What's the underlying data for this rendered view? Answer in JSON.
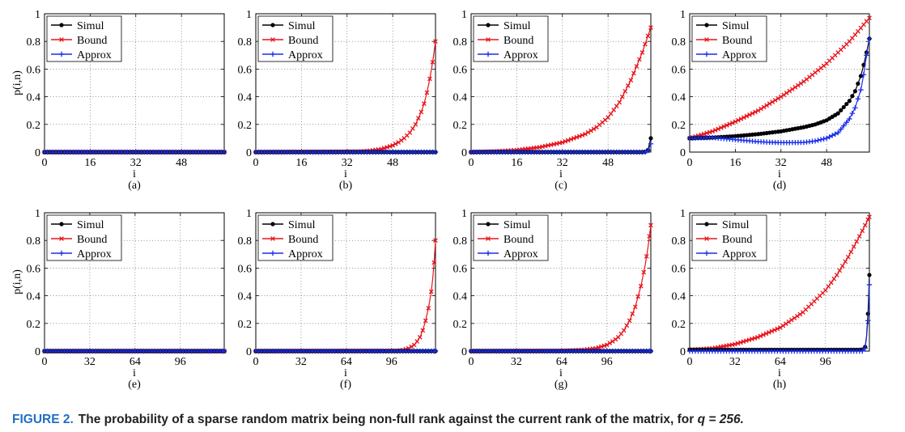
{
  "caption": {
    "lead": "FIGURE 2.",
    "body": "The probability of a sparse random matrix being non-full rank against the current rank of the matrix, for",
    "q_label": "q = 256."
  },
  "colors": {
    "simul": "#000000",
    "bound": "#e8141b",
    "approx": "#1a2fe8"
  },
  "chart_data": [
    {
      "type": "line",
      "panel_label": "(a)",
      "xlabel": "i",
      "ylabel": "p(i,n)",
      "xlim": [
        0,
        63
      ],
      "ylim": [
        0,
        1
      ],
      "xticks": [
        0,
        16,
        32,
        48
      ],
      "yticks": [
        0,
        0.2,
        0.4,
        0.6,
        0.8,
        1
      ],
      "ytick_labels": [
        "0",
        "0.2",
        "0.4",
        "0.6",
        "0.8",
        "1"
      ],
      "grid": true,
      "legend": "top-left",
      "legend_entries": [
        "Simul",
        "Bound",
        "Approx"
      ],
      "series": [
        {
          "name": "Simul",
          "x": [
            0,
            63
          ],
          "y": [
            0,
            0
          ]
        },
        {
          "name": "Bound",
          "x": [
            0,
            63
          ],
          "y": [
            0,
            0
          ]
        },
        {
          "name": "Approx",
          "x": [
            0,
            63
          ],
          "y": [
            0,
            0
          ]
        }
      ]
    },
    {
      "type": "line",
      "panel_label": "(b)",
      "xlabel": "i",
      "ylabel": "",
      "xlim": [
        0,
        63
      ],
      "ylim": [
        0,
        1
      ],
      "xticks": [
        0,
        16,
        32,
        48
      ],
      "yticks": [
        0,
        0.2,
        0.4,
        0.6,
        0.8,
        1
      ],
      "ytick_labels": [
        "0",
        "0.2",
        "0.4",
        "0.6",
        "0.8",
        "1"
      ],
      "grid": true,
      "legend": "top-left",
      "legend_entries": [
        "Simul",
        "Bound",
        "Approx"
      ],
      "series": [
        {
          "name": "Simul",
          "x": [
            0,
            63
          ],
          "y": [
            0,
            0
          ]
        },
        {
          "name": "Bound",
          "x": [
            0,
            36,
            40,
            44,
            48,
            50,
            52,
            54,
            56,
            58,
            59,
            60,
            61,
            62,
            63
          ],
          "y": [
            0,
            0.004,
            0.01,
            0.022,
            0.048,
            0.07,
            0.1,
            0.14,
            0.2,
            0.29,
            0.35,
            0.43,
            0.53,
            0.65,
            0.8
          ]
        },
        {
          "name": "Approx",
          "x": [
            0,
            63
          ],
          "y": [
            0,
            0
          ]
        }
      ]
    },
    {
      "type": "line",
      "panel_label": "(c)",
      "xlabel": "i",
      "ylabel": "",
      "xlim": [
        0,
        63
      ],
      "ylim": [
        0,
        1
      ],
      "xticks": [
        0,
        16,
        32,
        48
      ],
      "yticks": [
        0,
        0.2,
        0.4,
        0.6,
        0.8,
        1
      ],
      "ytick_labels": [
        "0",
        "0.2",
        "0.4",
        "0.6",
        "0.8",
        "1"
      ],
      "grid": true,
      "legend": "top-left",
      "legend_entries": [
        "Simul",
        "Bound",
        "Approx"
      ],
      "series": [
        {
          "name": "Simul",
          "x": [
            0,
            60,
            61,
            62,
            63
          ],
          "y": [
            0,
            0,
            0.003,
            0.015,
            0.1
          ]
        },
        {
          "name": "Bound",
          "x": [
            0,
            8,
            16,
            24,
            32,
            40,
            44,
            48,
            52,
            56,
            58,
            60,
            62,
            63
          ],
          "y": [
            0,
            0.005,
            0.015,
            0.035,
            0.07,
            0.13,
            0.18,
            0.25,
            0.36,
            0.52,
            0.62,
            0.72,
            0.84,
            0.9
          ]
        },
        {
          "name": "Approx",
          "x": [
            0,
            61,
            62,
            63
          ],
          "y": [
            0,
            0,
            0.01,
            0.06
          ]
        }
      ]
    },
    {
      "type": "line",
      "panel_label": "(d)",
      "xlabel": "i",
      "ylabel": "",
      "xlim": [
        0,
        63
      ],
      "ylim": [
        0,
        1
      ],
      "xticks": [
        0,
        16,
        32,
        48
      ],
      "yticks": [
        0,
        0.2,
        0.4,
        0.6,
        0.8,
        1
      ],
      "ytick_labels": [
        "0",
        "0.2",
        "0.4",
        "0.6",
        "0.8",
        "1"
      ],
      "grid": true,
      "legend": "top-left",
      "legend_entries": [
        "Simul",
        "Bound",
        "Approx"
      ],
      "series": [
        {
          "name": "Simul",
          "x": [
            0,
            8,
            16,
            24,
            32,
            40,
            44,
            48,
            52,
            56,
            58,
            60,
            61,
            62,
            63
          ],
          "y": [
            0.1,
            0.105,
            0.115,
            0.13,
            0.15,
            0.18,
            0.2,
            0.23,
            0.28,
            0.37,
            0.44,
            0.55,
            0.63,
            0.72,
            0.82
          ]
        },
        {
          "name": "Bound",
          "x": [
            0,
            8,
            16,
            24,
            32,
            40,
            48,
            56,
            63
          ],
          "y": [
            0.1,
            0.15,
            0.22,
            0.3,
            0.4,
            0.51,
            0.64,
            0.8,
            0.97
          ]
        },
        {
          "name": "Approx",
          "x": [
            0,
            8,
            16,
            24,
            32,
            40,
            44,
            48,
            52,
            56,
            58,
            60,
            61,
            62,
            63
          ],
          "y": [
            0.1,
            0.105,
            0.09,
            0.075,
            0.068,
            0.07,
            0.08,
            0.1,
            0.14,
            0.24,
            0.32,
            0.45,
            0.56,
            0.7,
            0.82
          ]
        }
      ]
    },
    {
      "type": "line",
      "panel_label": "(e)",
      "xlabel": "i",
      "ylabel": "p(i,n)",
      "xlim": [
        0,
        127
      ],
      "ylim": [
        0,
        1
      ],
      "xticks": [
        0,
        32,
        64,
        96
      ],
      "yticks": [
        0,
        0.2,
        0.4,
        0.6,
        0.8,
        1
      ],
      "ytick_labels": [
        "0",
        "0.2",
        "0.4",
        "0.6",
        "0.8",
        "1"
      ],
      "grid": true,
      "legend": "top-left",
      "legend_entries": [
        "Simul",
        "Bound",
        "Approx"
      ],
      "series": [
        {
          "name": "Simul",
          "x": [
            0,
            127
          ],
          "y": [
            0,
            0
          ]
        },
        {
          "name": "Bound",
          "x": [
            0,
            127
          ],
          "y": [
            0,
            0
          ]
        },
        {
          "name": "Approx",
          "x": [
            0,
            127
          ],
          "y": [
            0,
            0
          ]
        }
      ]
    },
    {
      "type": "line",
      "panel_label": "(f)",
      "xlabel": "i",
      "ylabel": "",
      "xlim": [
        0,
        127
      ],
      "ylim": [
        0,
        1
      ],
      "xticks": [
        0,
        32,
        64,
        96
      ],
      "yticks": [
        0,
        0.2,
        0.4,
        0.6,
        0.8,
        1
      ],
      "ytick_labels": [
        "0",
        "0.2",
        "0.4",
        "0.6",
        "0.8",
        "1"
      ],
      "grid": true,
      "legend": "top-left",
      "legend_entries": [
        "Simul",
        "Bound",
        "Approx"
      ],
      "series": [
        {
          "name": "Simul",
          "x": [
            0,
            127
          ],
          "y": [
            0,
            0
          ]
        },
        {
          "name": "Bound",
          "x": [
            0,
            100,
            104,
            108,
            112,
            114,
            116,
            118,
            120,
            122,
            124,
            125,
            126,
            127
          ],
          "y": [
            0,
            0.002,
            0.008,
            0.02,
            0.045,
            0.07,
            0.1,
            0.15,
            0.22,
            0.31,
            0.43,
            0.52,
            0.64,
            0.8
          ]
        },
        {
          "name": "Approx",
          "x": [
            0,
            127
          ],
          "y": [
            0,
            0
          ]
        }
      ]
    },
    {
      "type": "line",
      "panel_label": "(g)",
      "xlabel": "i",
      "ylabel": "",
      "xlim": [
        0,
        127
      ],
      "ylim": [
        0,
        1
      ],
      "xticks": [
        0,
        32,
        64,
        96
      ],
      "yticks": [
        0,
        0.2,
        0.4,
        0.6,
        0.8,
        1
      ],
      "ytick_labels": [
        "0",
        "0.2",
        "0.4",
        "0.6",
        "0.8",
        "1"
      ],
      "grid": true,
      "legend": "top-left",
      "legend_entries": [
        "Simul",
        "Bound",
        "Approx"
      ],
      "series": [
        {
          "name": "Simul",
          "x": [
            0,
            127
          ],
          "y": [
            0,
            0
          ]
        },
        {
          "name": "Bound",
          "x": [
            0,
            64,
            80,
            88,
            96,
            100,
            104,
            108,
            112,
            116,
            120,
            123,
            125,
            127
          ],
          "y": [
            0,
            0.002,
            0.01,
            0.02,
            0.045,
            0.07,
            0.1,
            0.15,
            0.22,
            0.32,
            0.47,
            0.62,
            0.75,
            0.91
          ]
        },
        {
          "name": "Approx",
          "x": [
            0,
            127
          ],
          "y": [
            0,
            0
          ]
        }
      ]
    },
    {
      "type": "line",
      "panel_label": "(h)",
      "xlabel": "i",
      "ylabel": "",
      "xlim": [
        0,
        127
      ],
      "ylim": [
        0,
        1
      ],
      "xticks": [
        0,
        32,
        64,
        96
      ],
      "yticks": [
        0,
        0.2,
        0.4,
        0.6,
        0.8,
        1
      ],
      "ytick_labels": [
        "0",
        "0.2",
        "0.4",
        "0.6",
        "0.8",
        "1"
      ],
      "grid": true,
      "legend": "top-left",
      "legend_entries": [
        "Simul",
        "Bound",
        "Approx"
      ],
      "series": [
        {
          "name": "Simul",
          "x": [
            0,
            120,
            122,
            124,
            125,
            126,
            127
          ],
          "y": [
            0.01,
            0.01,
            0.012,
            0.03,
            0.11,
            0.27,
            0.55
          ]
        },
        {
          "name": "Bound",
          "x": [
            0,
            16,
            32,
            48,
            64,
            80,
            96,
            104,
            112,
            120,
            127
          ],
          "y": [
            0.01,
            0.02,
            0.05,
            0.1,
            0.17,
            0.28,
            0.44,
            0.55,
            0.68,
            0.83,
            0.97
          ]
        },
        {
          "name": "Approx",
          "x": [
            0,
            122,
            124,
            125,
            126,
            127
          ],
          "y": [
            0,
            0,
            0.02,
            0.1,
            0.22,
            0.48
          ]
        }
      ]
    }
  ]
}
